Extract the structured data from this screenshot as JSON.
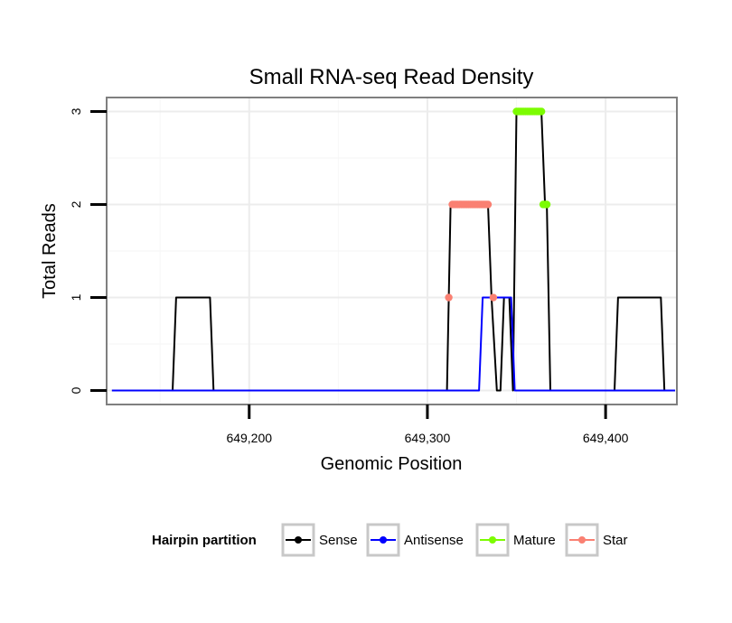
{
  "chart_data": {
    "type": "line",
    "title": "Small RNA-seq Read Density",
    "xlabel": "Genomic Position",
    "ylabel": "Total Reads",
    "xlim": [
      649120,
      649440
    ],
    "ylim": [
      -0.15,
      3.15
    ],
    "x_ticks": [
      649200,
      649300,
      649400
    ],
    "x_tick_labels": [
      "649,200",
      "649,300",
      "649,400"
    ],
    "y_ticks": [
      0,
      1,
      2,
      3
    ],
    "y_tick_labels": [
      "0",
      "1",
      "2",
      "3"
    ],
    "grid": true,
    "legend_position": "bottom",
    "legend_title": "Hairpin partition",
    "series": [
      {
        "name": "Sense",
        "color": "#000000",
        "type": "line",
        "x": [
          649123,
          649157,
          649159,
          649178,
          649180,
          649311,
          649313,
          649334,
          649336,
          649339,
          649341,
          649343,
          649346,
          649348,
          649350,
          649364,
          649366,
          649367,
          649369,
          649405,
          649407,
          649431,
          649433,
          649439
        ],
        "y": [
          0,
          0,
          1,
          1,
          0,
          0,
          2,
          2,
          1,
          0,
          0,
          1,
          1,
          0,
          3,
          3,
          2,
          2,
          0,
          0,
          1,
          1,
          0,
          0
        ]
      },
      {
        "name": "Antisense",
        "color": "#0000ff",
        "type": "line",
        "x": [
          649123,
          649329,
          649331,
          649347,
          649349,
          649439
        ],
        "y": [
          0,
          0,
          1,
          1,
          0,
          0
        ]
      },
      {
        "name": "Mature",
        "color": "#7cfc00",
        "type": "points",
        "x": [
          649350,
          649351,
          649352,
          649353,
          649354,
          649355,
          649356,
          649357,
          649358,
          649359,
          649360,
          649361,
          649362,
          649363,
          649364,
          649365,
          649366,
          649367
        ],
        "y": [
          3,
          3,
          3,
          3,
          3,
          3,
          3,
          3,
          3,
          3,
          3,
          3,
          3,
          3,
          3,
          2,
          2,
          2
        ]
      },
      {
        "name": "Star",
        "color": "#fa8072",
        "type": "points",
        "x": [
          649312,
          649314,
          649315,
          649316,
          649317,
          649318,
          649319,
          649320,
          649321,
          649322,
          649323,
          649324,
          649325,
          649326,
          649327,
          649328,
          649329,
          649330,
          649331,
          649332,
          649333,
          649334,
          649337
        ],
        "y": [
          1,
          2,
          2,
          2,
          2,
          2,
          2,
          2,
          2,
          2,
          2,
          2,
          2,
          2,
          2,
          2,
          2,
          2,
          2,
          2,
          2,
          2,
          1
        ]
      }
    ]
  }
}
